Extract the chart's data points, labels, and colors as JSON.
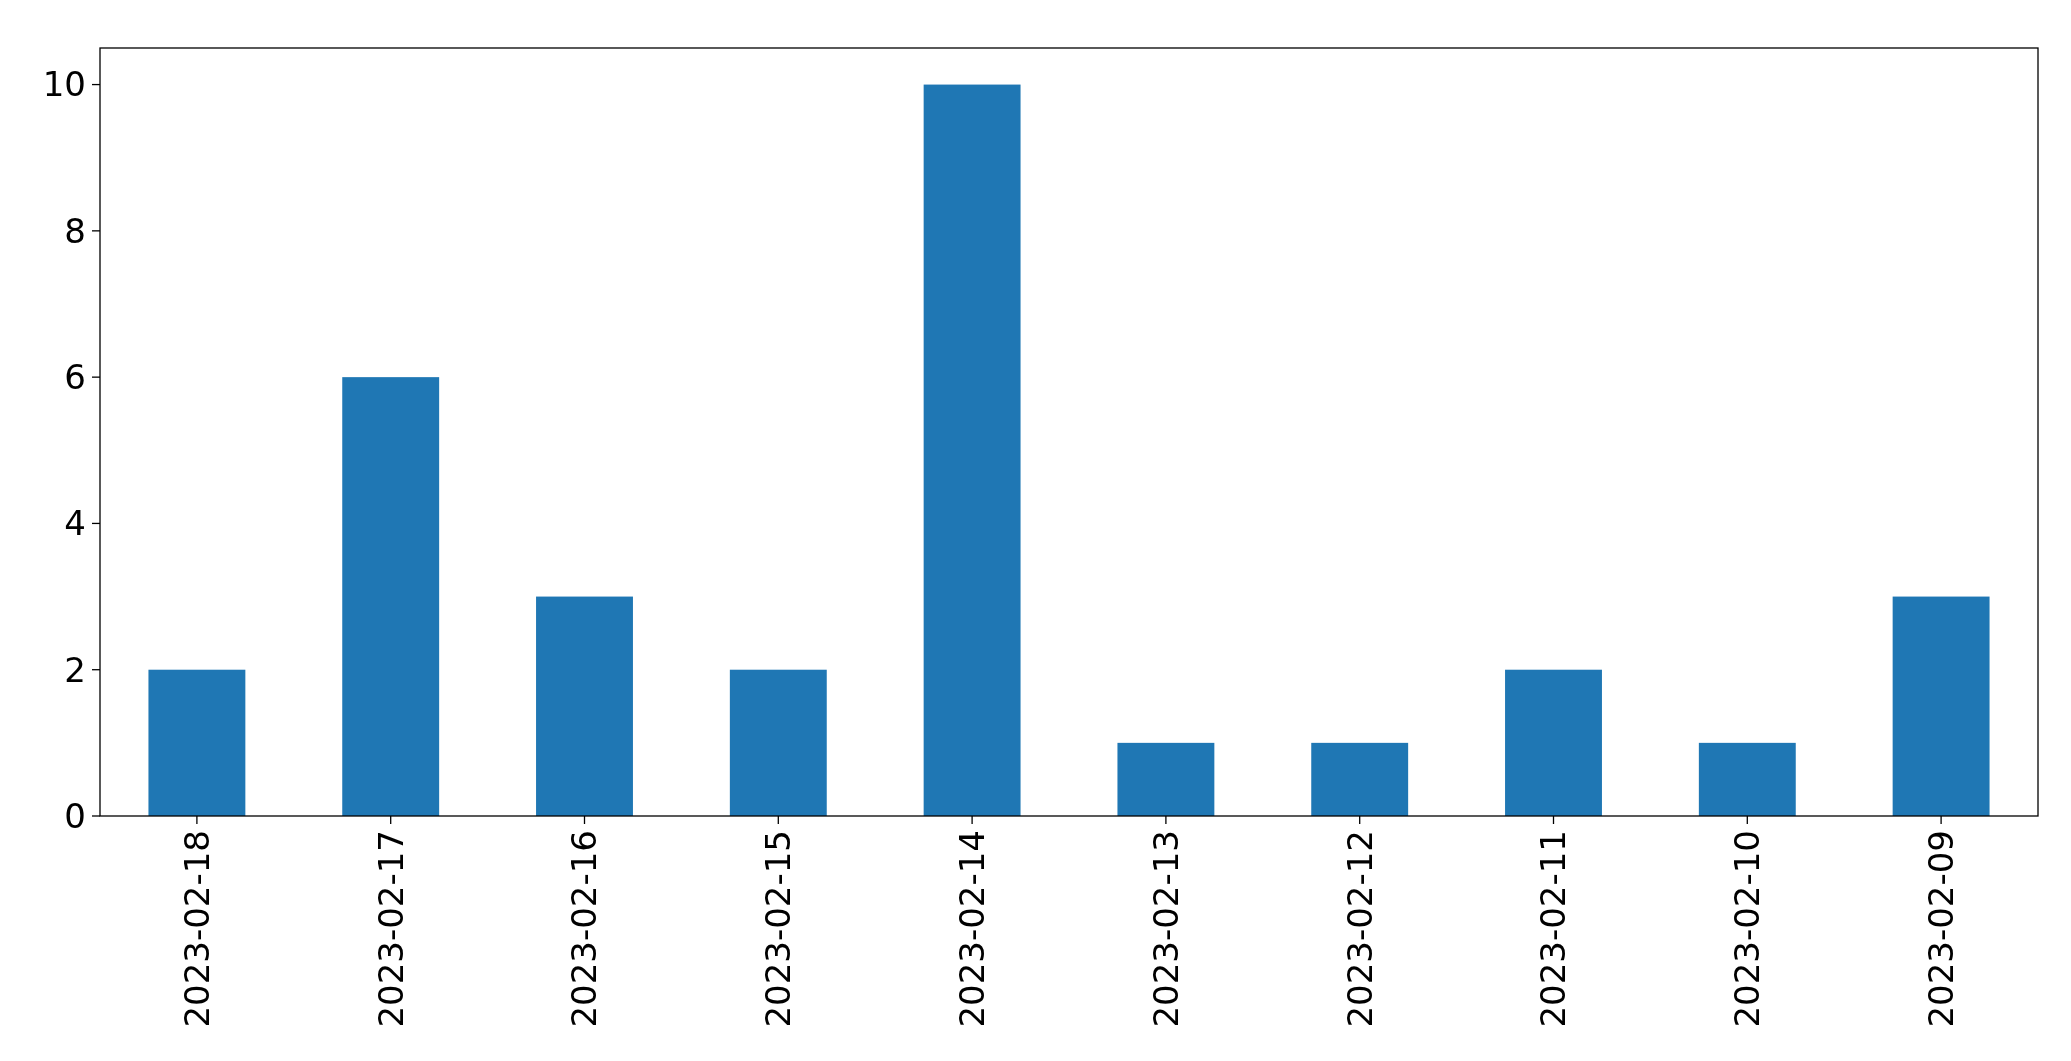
{
  "chart_data": {
    "type": "bar",
    "categories": [
      "2023-02-18",
      "2023-02-17",
      "2023-02-16",
      "2023-02-15",
      "2023-02-14",
      "2023-02-13",
      "2023-02-12",
      "2023-02-11",
      "2023-02-10",
      "2023-02-09"
    ],
    "values": [
      2,
      6,
      3,
      2,
      10,
      1,
      1,
      2,
      1,
      3
    ],
    "color": "#1f77b4",
    "ylim": [
      0,
      10.5
    ],
    "yticks": [
      0,
      2,
      4,
      6,
      8,
      10
    ],
    "grid": false
  }
}
